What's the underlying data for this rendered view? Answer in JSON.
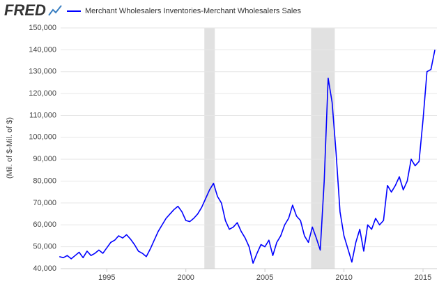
{
  "logo": "FRED",
  "chart_data": {
    "type": "line",
    "ylabel": "(Mil. of $-Mil. of $)",
    "series": [
      {
        "name": "Merchant Wholesalers Inventories-Merchant Wholesalers Sales",
        "color": "#0000ff",
        "values": [
          45500,
          45000,
          46000,
          44500,
          46000,
          47500,
          45000,
          48000,
          46000,
          47000,
          48500,
          47000,
          49500,
          52000,
          53000,
          55000,
          54000,
          55500,
          53500,
          51000,
          48000,
          47000,
          45500,
          49000,
          53000,
          57000,
          60000,
          63000,
          65000,
          67000,
          68500,
          66000,
          62000,
          61500,
          63000,
          65000,
          68000,
          72000,
          76000,
          79000,
          73000,
          70000,
          62000,
          58000,
          59000,
          61000,
          57000,
          54000,
          50000,
          42500,
          47000,
          51000,
          50000,
          53000,
          46000,
          52000,
          55000,
          60000,
          63000,
          69000,
          64000,
          62000,
          55000,
          52000,
          59000,
          54000,
          48500,
          80000,
          127000,
          116000,
          93000,
          66000,
          55000,
          49000,
          43000,
          52000,
          58000,
          48000,
          60000,
          58000,
          63000,
          60000,
          62000,
          78000,
          75000,
          78000,
          82000,
          76000,
          80000,
          90000,
          87000,
          89000,
          108000,
          130000,
          131000,
          140000
        ]
      }
    ],
    "x": [
      1992,
      1992.25,
      1992.5,
      1992.75,
      1993,
      1993.25,
      1993.5,
      1993.75,
      1994,
      1994.25,
      1994.5,
      1994.75,
      1995,
      1995.25,
      1995.5,
      1995.75,
      1996,
      1996.25,
      1996.5,
      1996.75,
      1997,
      1997.25,
      1997.5,
      1997.75,
      1998,
      1998.25,
      1998.5,
      1998.75,
      1999,
      1999.25,
      1999.5,
      1999.75,
      2000,
      2000.25,
      2000.5,
      2000.75,
      2001,
      2001.25,
      2001.5,
      2001.75,
      2002,
      2002.25,
      2002.5,
      2002.75,
      2003,
      2003.25,
      2003.5,
      2003.75,
      2004,
      2004.25,
      2004.5,
      2004.75,
      2005,
      2005.25,
      2005.5,
      2005.75,
      2006,
      2006.25,
      2006.5,
      2006.75,
      2007,
      2007.25,
      2007.5,
      2007.75,
      2008,
      2008.25,
      2008.5,
      2008.75,
      2009,
      2009.25,
      2009.5,
      2009.75,
      2010,
      2010.25,
      2010.5,
      2010.75,
      2011,
      2011.25,
      2011.5,
      2011.75,
      2012,
      2012.25,
      2012.5,
      2012.75,
      2013,
      2013.25,
      2013.5,
      2013.75,
      2014,
      2014.25,
      2014.5,
      2014.75,
      2015,
      2015.25,
      2015.5,
      2015.75
    ],
    "xlim": [
      1992.08,
      2015.88
    ],
    "xticks": [
      1995,
      2000,
      2005,
      2010,
      2015
    ],
    "ylim": [
      40000,
      150000
    ],
    "yticks": [
      {
        "value": 40000,
        "label": "40,000"
      },
      {
        "value": 50000,
        "label": "50,000"
      },
      {
        "value": 60000,
        "label": "60,000"
      },
      {
        "value": 70000,
        "label": "70,000"
      },
      {
        "value": 80000,
        "label": "80,000"
      },
      {
        "value": 90000,
        "label": "90,000"
      },
      {
        "value": 100000,
        "label": "100,000"
      },
      {
        "value": 110000,
        "label": "110,000"
      },
      {
        "value": 120000,
        "label": "120,000"
      },
      {
        "value": 130000,
        "label": "130,000"
      },
      {
        "value": 140000,
        "label": "140,000"
      },
      {
        "value": 150000,
        "label": "150,000"
      }
    ],
    "shading": [
      [
        2001.17,
        2001.83
      ],
      [
        2007.92,
        2009.42
      ]
    ],
    "grid": true
  }
}
